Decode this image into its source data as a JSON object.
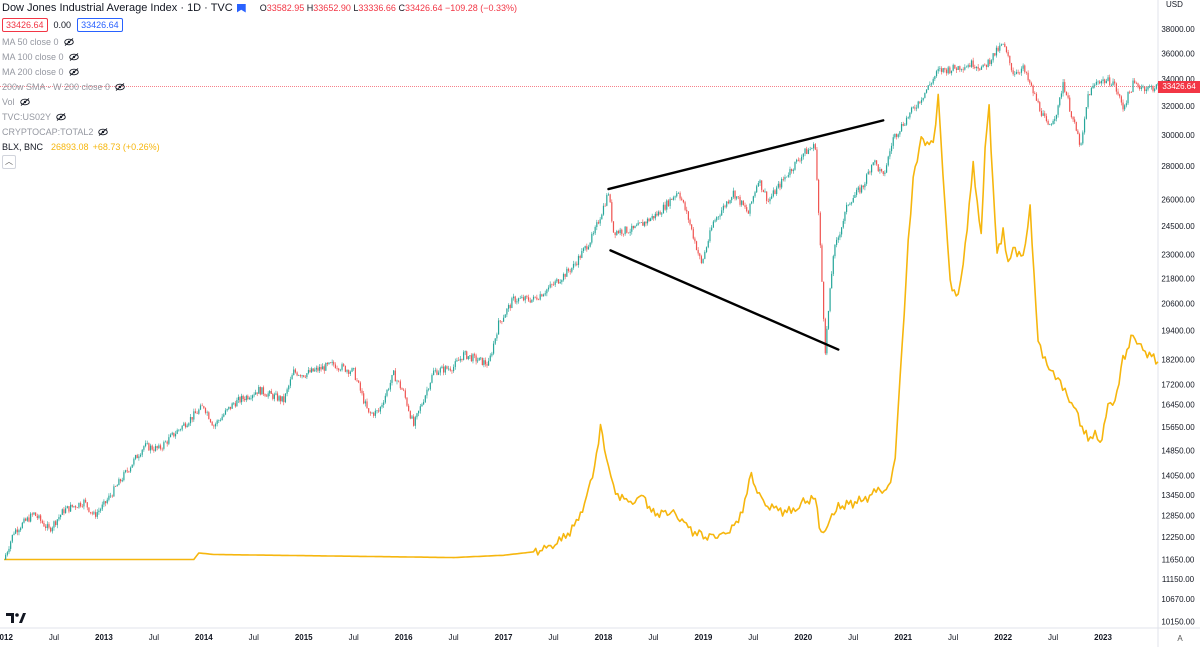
{
  "header": {
    "symbol_title": "Dow Jones Industrial Average Index · 1D · TVC",
    "ohlc": [
      {
        "label": "O",
        "value": "33582.95"
      },
      {
        "label": "H",
        "value": "33652.90"
      },
      {
        "label": "L",
        "value": "33336.66"
      },
      {
        "label": "C",
        "value": "33426.64"
      }
    ],
    "change": "−109.28 (−0.33%)",
    "bid_box": "33426.64",
    "spread": "0.00",
    "ask_box": "33426.64"
  },
  "indicators": [
    {
      "label": "MA 50 close 0",
      "icon": "eye-off-icon"
    },
    {
      "label": "MA 100 close 0",
      "icon": "eye-off-icon"
    },
    {
      "label": "MA 200 close 0",
      "icon": "eye-off-icon"
    },
    {
      "label": "200w SMA - W 200 close 0",
      "icon": "eye-off-icon"
    },
    {
      "label": "Vol",
      "icon": "eye-off-icon"
    },
    {
      "label": "TVC:US02Y",
      "icon": "eye-off-icon"
    },
    {
      "label": "CRYPTOCAP:TOTAL2",
      "icon": "eye-off-icon"
    }
  ],
  "overlay_symbol": {
    "name": "BLX, BNC",
    "value": "26893.08",
    "change": "+68.73 (+0.26%)"
  },
  "price_axis": {
    "currency": "USD",
    "current_price_label": "33426.64"
  },
  "auto_button": "A",
  "colors": {
    "up": "#26a69a",
    "down": "#ef5350",
    "overlay": "#f6b60e",
    "trendline": "#000000",
    "price_line": "#f23645",
    "axis_text": "#131722"
  },
  "chart_data": {
    "type": "line",
    "scale": "log",
    "x_range": [
      2012.0,
      2023.55
    ],
    "ylim": [
      10000,
      40000
    ],
    "y_ticks": [
      38000,
      36000,
      34000,
      32000,
      30000,
      28000,
      26000,
      24500,
      23000,
      21800,
      20600,
      19400,
      18200,
      17200,
      16450,
      15650,
      14850,
      14050,
      13450,
      12850,
      12250,
      11650,
      11150,
      10670,
      10150
    ],
    "x_ticks": [
      {
        "x": 2012.0,
        "label": "2012"
      },
      {
        "x": 2012.5,
        "label": "Jul"
      },
      {
        "x": 2013.0,
        "label": "2013"
      },
      {
        "x": 2013.5,
        "label": "Jul"
      },
      {
        "x": 2014.0,
        "label": "2014"
      },
      {
        "x": 2014.5,
        "label": "Jul"
      },
      {
        "x": 2015.0,
        "label": "2015"
      },
      {
        "x": 2015.5,
        "label": "Jul"
      },
      {
        "x": 2016.0,
        "label": "2016"
      },
      {
        "x": 2016.5,
        "label": "Jul"
      },
      {
        "x": 2017.0,
        "label": "2017"
      },
      {
        "x": 2017.5,
        "label": "Jul"
      },
      {
        "x": 2018.0,
        "label": "2018"
      },
      {
        "x": 2018.5,
        "label": "Jul"
      },
      {
        "x": 2019.0,
        "label": "2019"
      },
      {
        "x": 2019.5,
        "label": "Jul"
      },
      {
        "x": 2020.0,
        "label": "2020"
      },
      {
        "x": 2020.5,
        "label": "Jul"
      },
      {
        "x": 2021.0,
        "label": "2021"
      },
      {
        "x": 2021.5,
        "label": "Jul"
      },
      {
        "x": 2022.0,
        "label": "2022"
      },
      {
        "x": 2022.5,
        "label": "Jul"
      },
      {
        "x": 2023.0,
        "label": "2023"
      },
      {
        "x": 2023.5,
        "label": "Jul"
      }
    ],
    "series": [
      {
        "name": "Dow Jones Industrial Average Index",
        "style": "candles",
        "points": [
          [
            2012.0,
            11650
          ],
          [
            2012.1,
            12400
          ],
          [
            2012.3,
            12900
          ],
          [
            2012.45,
            12450
          ],
          [
            2012.6,
            13000
          ],
          [
            2012.8,
            13250
          ],
          [
            2012.9,
            12850
          ],
          [
            2013.0,
            13150
          ],
          [
            2013.2,
            14050
          ],
          [
            2013.4,
            15000
          ],
          [
            2013.55,
            14900
          ],
          [
            2013.7,
            15400
          ],
          [
            2013.85,
            15900
          ],
          [
            2014.0,
            16400
          ],
          [
            2014.1,
            15700
          ],
          [
            2014.3,
            16500
          ],
          [
            2014.55,
            17000
          ],
          [
            2014.8,
            16600
          ],
          [
            2014.9,
            17700
          ],
          [
            2015.0,
            17600
          ],
          [
            2015.3,
            18000
          ],
          [
            2015.5,
            17700
          ],
          [
            2015.65,
            16100
          ],
          [
            2015.75,
            16200
          ],
          [
            2015.9,
            17600
          ],
          [
            2016.0,
            16900
          ],
          [
            2016.1,
            15700
          ],
          [
            2016.3,
            17700
          ],
          [
            2016.5,
            17900
          ],
          [
            2016.6,
            18400
          ],
          [
            2016.85,
            18000
          ],
          [
            2016.95,
            19700
          ],
          [
            2017.1,
            20800
          ],
          [
            2017.3,
            20800
          ],
          [
            2017.5,
            21500
          ],
          [
            2017.7,
            22400
          ],
          [
            2017.9,
            24000
          ],
          [
            2018.05,
            26400
          ],
          [
            2018.1,
            24200
          ],
          [
            2018.3,
            24300
          ],
          [
            2018.55,
            25200
          ],
          [
            2018.75,
            26500
          ],
          [
            2018.85,
            24900
          ],
          [
            2018.98,
            22500
          ],
          [
            2019.1,
            24700
          ],
          [
            2019.3,
            26400
          ],
          [
            2019.45,
            25200
          ],
          [
            2019.55,
            27200
          ],
          [
            2019.65,
            25900
          ],
          [
            2019.85,
            27600
          ],
          [
            2020.0,
            28800
          ],
          [
            2020.12,
            29300
          ],
          [
            2020.22,
            18600
          ],
          [
            2020.3,
            23000
          ],
          [
            2020.45,
            25800
          ],
          [
            2020.6,
            26800
          ],
          [
            2020.7,
            28400
          ],
          [
            2020.8,
            27300
          ],
          [
            2020.9,
            29800
          ],
          [
            2021.0,
            30800
          ],
          [
            2021.2,
            32800
          ],
          [
            2021.35,
            34600
          ],
          [
            2021.5,
            34800
          ],
          [
            2021.7,
            35200
          ],
          [
            2021.8,
            34800
          ],
          [
            2021.95,
            36300
          ],
          [
            2022.0,
            36700
          ],
          [
            2022.1,
            34500
          ],
          [
            2022.2,
            34800
          ],
          [
            2022.3,
            33000
          ],
          [
            2022.45,
            30500
          ],
          [
            2022.55,
            31800
          ],
          [
            2022.6,
            33800
          ],
          [
            2022.7,
            31000
          ],
          [
            2022.78,
            29200
          ],
          [
            2022.85,
            32800
          ],
          [
            2022.95,
            33900
          ],
          [
            2023.1,
            33800
          ],
          [
            2023.2,
            31900
          ],
          [
            2023.3,
            33600
          ],
          [
            2023.45,
            33300
          ],
          [
            2023.55,
            33427
          ]
        ]
      },
      {
        "name": "BLX, BNC",
        "style": "line",
        "points": [
          [
            2012.0,
            11650
          ],
          [
            2013.9,
            11650
          ],
          [
            2013.95,
            11820
          ],
          [
            2014.1,
            11780
          ],
          [
            2016.5,
            11700
          ],
          [
            2017.0,
            11760
          ],
          [
            2017.3,
            11850
          ],
          [
            2017.45,
            11950
          ],
          [
            2017.6,
            12200
          ],
          [
            2017.75,
            12700
          ],
          [
            2017.85,
            13600
          ],
          [
            2017.93,
            14600
          ],
          [
            2017.97,
            15700
          ],
          [
            2018.05,
            14300
          ],
          [
            2018.1,
            13600
          ],
          [
            2018.25,
            13200
          ],
          [
            2018.4,
            13400
          ],
          [
            2018.5,
            12900
          ],
          [
            2018.7,
            12950
          ],
          [
            2018.85,
            12500
          ],
          [
            2018.98,
            12250
          ],
          [
            2019.2,
            12300
          ],
          [
            2019.35,
            12650
          ],
          [
            2019.48,
            14000
          ],
          [
            2019.6,
            13200
          ],
          [
            2019.75,
            13000
          ],
          [
            2019.9,
            12950
          ],
          [
            2020.0,
            13250
          ],
          [
            2020.12,
            13350
          ],
          [
            2020.18,
            12300
          ],
          [
            2020.35,
            13100
          ],
          [
            2020.6,
            13300
          ],
          [
            2020.75,
            13600
          ],
          [
            2020.85,
            13600
          ],
          [
            2020.92,
            14600
          ],
          [
            2020.97,
            17500
          ],
          [
            2021.05,
            23500
          ],
          [
            2021.1,
            27300
          ],
          [
            2021.18,
            29800
          ],
          [
            2021.3,
            29200
          ],
          [
            2021.35,
            32800
          ],
          [
            2021.42,
            25500
          ],
          [
            2021.47,
            21500
          ],
          [
            2021.55,
            21000
          ],
          [
            2021.6,
            22500
          ],
          [
            2021.7,
            28000
          ],
          [
            2021.78,
            24000
          ],
          [
            2021.82,
            29200
          ],
          [
            2021.86,
            31800
          ],
          [
            2021.9,
            26700
          ],
          [
            2021.94,
            23100
          ],
          [
            2022.0,
            24200
          ],
          [
            2022.05,
            22500
          ],
          [
            2022.1,
            23400
          ],
          [
            2022.2,
            22800
          ],
          [
            2022.27,
            25500
          ],
          [
            2022.35,
            19000
          ],
          [
            2022.42,
            18200
          ],
          [
            2022.5,
            17600
          ],
          [
            2022.55,
            17500
          ],
          [
            2022.62,
            17000
          ],
          [
            2022.75,
            16000
          ],
          [
            2022.85,
            15200
          ],
          [
            2022.92,
            15500
          ],
          [
            2022.97,
            15000
          ],
          [
            2023.05,
            16500
          ],
          [
            2023.12,
            16600
          ],
          [
            2023.2,
            18200
          ],
          [
            2023.3,
            19200
          ],
          [
            2023.4,
            18600
          ],
          [
            2023.55,
            18100
          ]
        ]
      }
    ],
    "drawings": [
      {
        "type": "trendline",
        "from": [
          2018.05,
          26600
        ],
        "to": [
          2020.8,
          31000
        ]
      },
      {
        "type": "trendline",
        "from": [
          2018.07,
          23200
        ],
        "to": [
          2020.35,
          18600
        ]
      }
    ],
    "grid": false,
    "current_price": 33426.64
  }
}
